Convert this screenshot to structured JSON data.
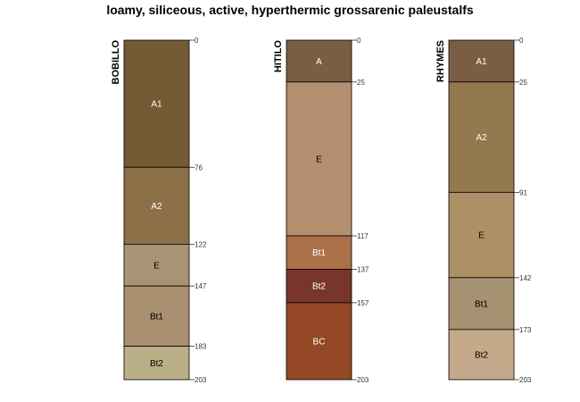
{
  "title": "loamy, siliceous, active, hyperthermic grossarenic paleustalfs",
  "max_depth": 203,
  "profiles": [
    {
      "name": "BOBILLO",
      "horizons": [
        {
          "name": "A1",
          "top": 0,
          "bottom": 76,
          "color": "#755A36",
          "text_color": "#ffffff"
        },
        {
          "name": "A2",
          "top": 76,
          "bottom": 122,
          "color": "#8E7048",
          "text_color": "#ffffff"
        },
        {
          "name": "E",
          "top": 122,
          "bottom": 147,
          "color": "#AA9274",
          "text_color": "#000000"
        },
        {
          "name": "Bt1",
          "top": 147,
          "bottom": 183,
          "color": "#A89070",
          "text_color": "#000000"
        },
        {
          "name": "Bt2",
          "top": 183,
          "bottom": 203,
          "color": "#BBAF88",
          "text_color": "#000000"
        }
      ],
      "depth_labels": [
        "0",
        "76",
        "122",
        "147",
        "183",
        "203"
      ]
    },
    {
      "name": "HITILO",
      "horizons": [
        {
          "name": "A",
          "top": 0,
          "bottom": 25,
          "color": "#7A5E43",
          "text_color": "#ffffff"
        },
        {
          "name": "E",
          "top": 25,
          "bottom": 117,
          "color": "#B48F6F",
          "text_color": "#000000"
        },
        {
          "name": "Bt1",
          "top": 117,
          "bottom": 137,
          "color": "#AA7048",
          "text_color": "#ffffff"
        },
        {
          "name": "Bt2",
          "top": 137,
          "bottom": 157,
          "color": "#78352C",
          "text_color": "#ffffff"
        },
        {
          "name": "BC",
          "top": 157,
          "bottom": 203,
          "color": "#944825",
          "text_color": "#ffffff"
        }
      ],
      "depth_labels": [
        "0",
        "25",
        "117",
        "137",
        "157",
        "203"
      ]
    },
    {
      "name": "RHYMES",
      "horizons": [
        {
          "name": "A1",
          "top": 0,
          "bottom": 25,
          "color": "#7A5E43",
          "text_color": "#ffffff"
        },
        {
          "name": "A2",
          "top": 25,
          "bottom": 91,
          "color": "#94784F",
          "text_color": "#ffffff"
        },
        {
          "name": "E",
          "top": 91,
          "bottom": 142,
          "color": "#AE9067",
          "text_color": "#000000"
        },
        {
          "name": "Bt1",
          "top": 142,
          "bottom": 173,
          "color": "#A69171",
          "text_color": "#000000"
        },
        {
          "name": "Bt2",
          "top": 173,
          "bottom": 203,
          "color": "#C4A98A",
          "text_color": "#000000"
        }
      ],
      "depth_labels": [
        "0",
        "25",
        "91",
        "142",
        "173",
        "203"
      ]
    }
  ]
}
